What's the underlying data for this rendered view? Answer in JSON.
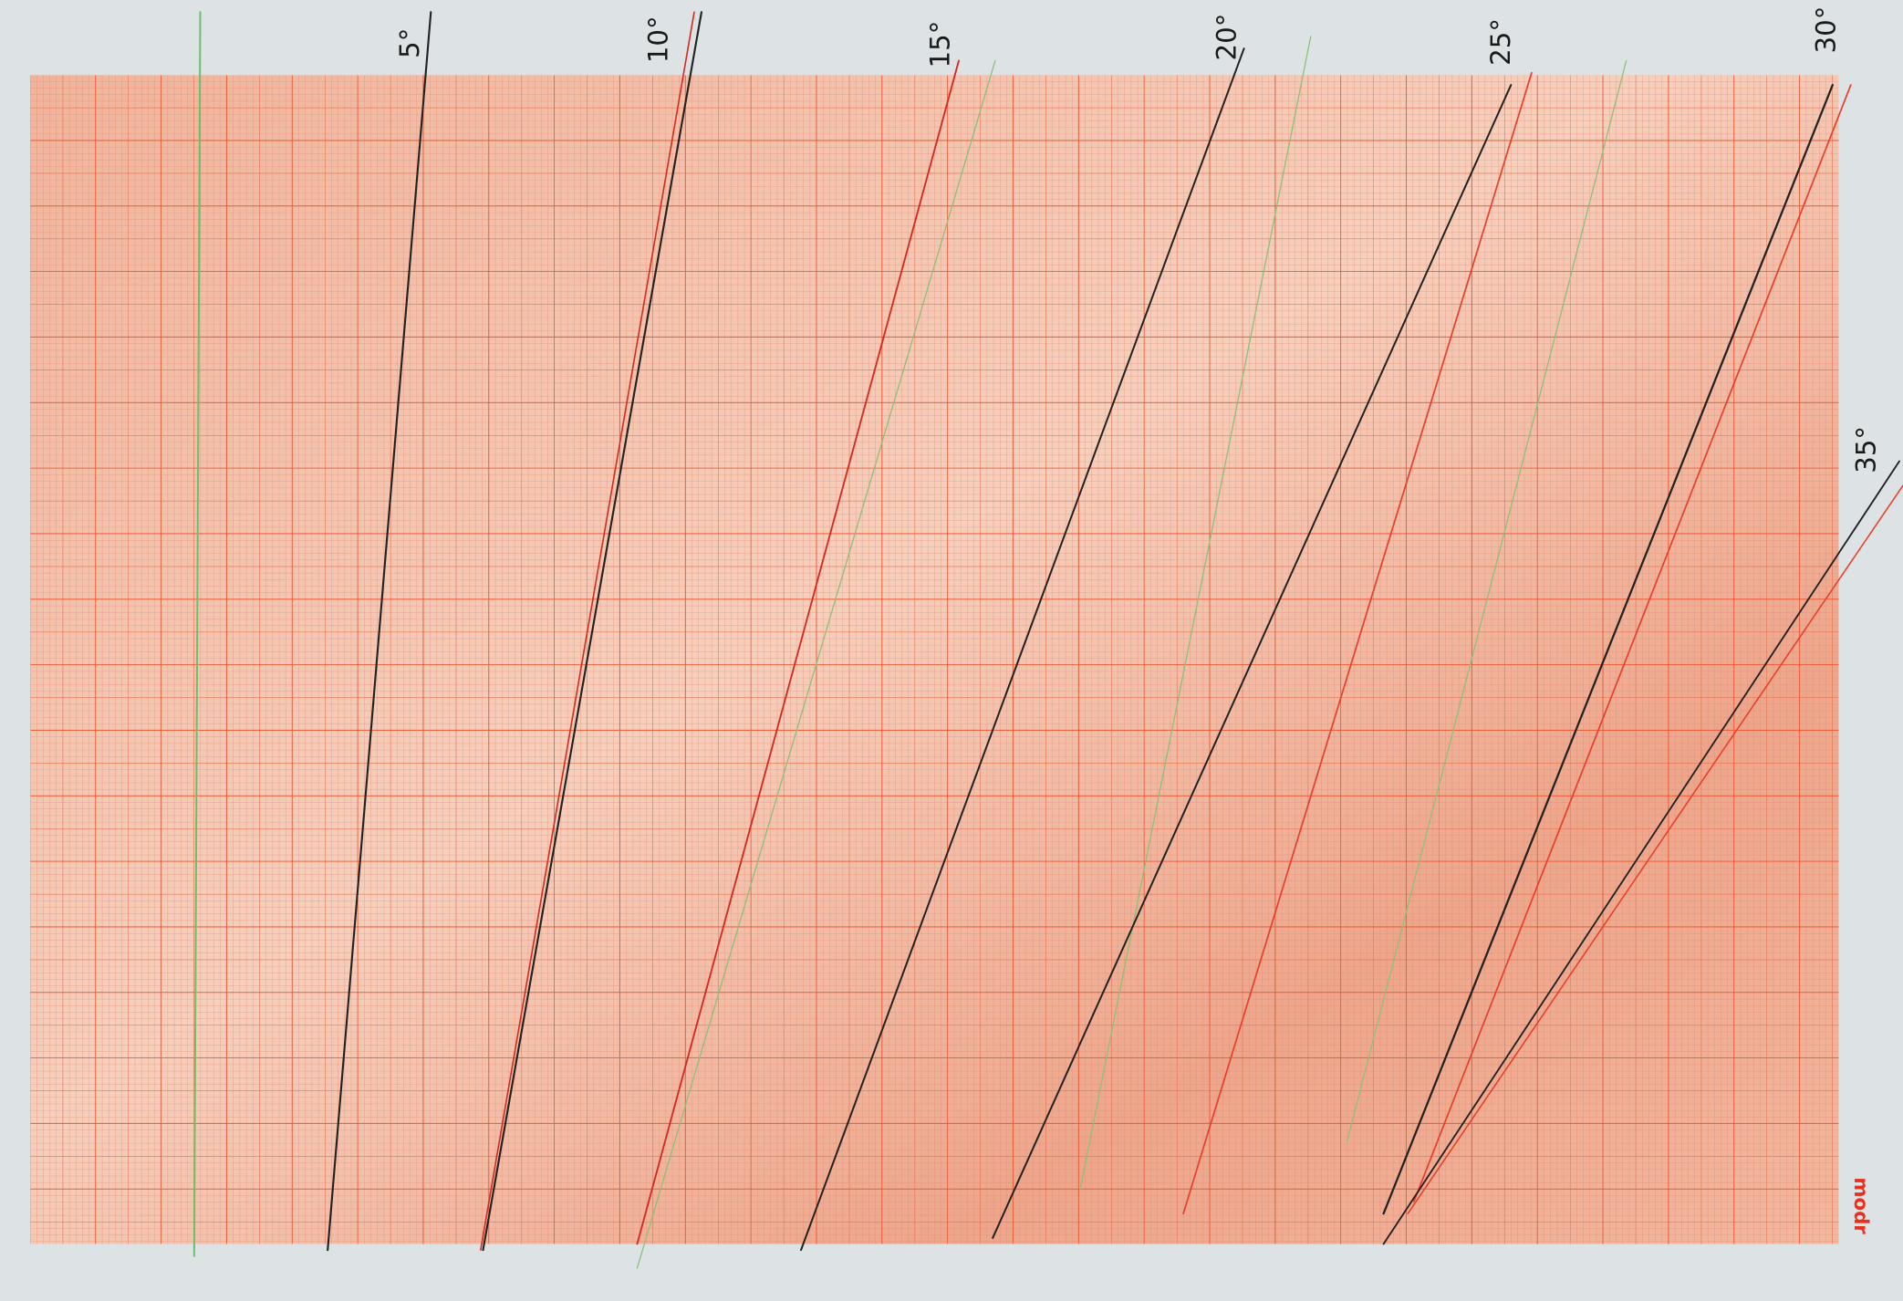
{
  "labels": [
    "5°",
    "10°",
    "15°",
    "20°",
    "25°",
    "30°",
    "35°"
  ],
  "brand": "modr"
}
